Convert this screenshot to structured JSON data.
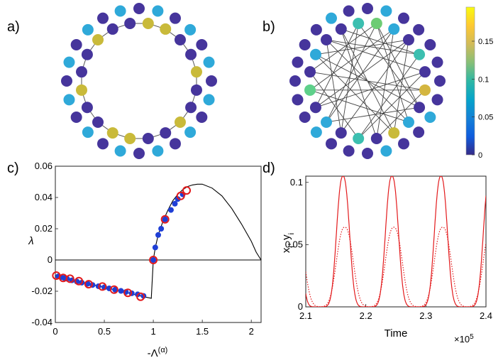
{
  "panels": {
    "a": {
      "label": "a)"
    },
    "b": {
      "label": "b)"
    },
    "c": {
      "label": "c)"
    },
    "d": {
      "label": "d)"
    }
  },
  "networks": {
    "a": {
      "outer_count": 24,
      "inner_count": 20,
      "outer_colors": [
        "#46359c",
        "#2fa9d9",
        "#46359c",
        "#2fa9d9",
        "#46359c",
        "#2fa9d9",
        "#46359c",
        "#2fa9d9",
        "#46359c",
        "#2fa9d9",
        "#46359c",
        "#2fa9d9",
        "#46359c",
        "#2fa9d9",
        "#46359c",
        "#2fa9d9",
        "#46359c",
        "#2fa9d9",
        "#46359c",
        "#2fa9d9",
        "#46359c",
        "#2fa9d9",
        "#46359c",
        "#2fa9d9"
      ],
      "inner_colors": [
        "#c9ba3a",
        "#c9ba3a",
        "#46359c",
        "#46359c",
        "#c9ba3a",
        "#46359c",
        "#46359c",
        "#c9ba3a",
        "#46359c",
        "#46359c",
        "#c9ba3a",
        "#c9ba3a",
        "#46359c",
        "#46359c",
        "#c9ba3a",
        "#46359c",
        "#46359c",
        "#c9ba3a",
        "#46359c",
        "#46359c"
      ],
      "ring_edge_color": "#555555"
    },
    "b": {
      "outer_colors": [
        "#46359c",
        "#2fa9d9",
        "#46359c",
        "#46359c",
        "#46359c",
        "#46359c",
        "#46359c",
        "#46359c",
        "#2fa9d9",
        "#46359c",
        "#46359c",
        "#2fa9d9",
        "#46359c",
        "#46359c",
        "#46359c",
        "#2fa9d9",
        "#46359c",
        "#46359c",
        "#46359c",
        "#46359c",
        "#46359c",
        "#46359c",
        "#2fa9d9",
        "#46359c"
      ],
      "inner_colors": [
        "#6dcc74",
        "#2fa9d9",
        "#46359c",
        "#3cbfb0",
        "#46359c",
        "#d4b640",
        "#46359c",
        "#2fa9d9",
        "#c9ba3a",
        "#46359c",
        "#3cbfb0",
        "#46359c",
        "#2fa9d9",
        "#46359c",
        "#5ed08a",
        "#46359c",
        "#2fa9d9",
        "#46359c",
        "#46359c",
        "#3cbfb0"
      ],
      "edges": [
        [
          0,
          7
        ],
        [
          0,
          12
        ],
        [
          1,
          9
        ],
        [
          1,
          14
        ],
        [
          2,
          11
        ],
        [
          2,
          16
        ],
        [
          3,
          10
        ],
        [
          3,
          18
        ],
        [
          4,
          13
        ],
        [
          4,
          17
        ],
        [
          5,
          9
        ],
        [
          5,
          15
        ],
        [
          6,
          12
        ],
        [
          6,
          19
        ],
        [
          7,
          14
        ],
        [
          8,
          16
        ],
        [
          8,
          2
        ],
        [
          9,
          18
        ],
        [
          10,
          4
        ],
        [
          11,
          17
        ],
        [
          12,
          1
        ],
        [
          13,
          19
        ],
        [
          14,
          5
        ],
        [
          15,
          0
        ],
        [
          16,
          6
        ],
        [
          17,
          3
        ],
        [
          18,
          8
        ],
        [
          19,
          11
        ],
        [
          2,
          13
        ],
        [
          7,
          17
        ],
        [
          10,
          15
        ],
        [
          6,
          0
        ]
      ],
      "edge_color": "#444444"
    }
  },
  "colorbar": {
    "ticks": [
      {
        "value": 0,
        "label": "0"
      },
      {
        "value": 0.05,
        "label": "0.05"
      },
      {
        "value": 0.1,
        "label": "0.1"
      },
      {
        "value": 0.15,
        "label": "0.15"
      }
    ],
    "min": 0,
    "max": 0.195,
    "stops": [
      "#352a87",
      "#0f5cdd",
      "#1481d6",
      "#06a4ca",
      "#2eb7a4",
      "#87bf77",
      "#d1bb59",
      "#fec832",
      "#f9fb0e"
    ]
  },
  "chart_data": [
    {
      "type": "line",
      "panel": "c",
      "xlabel": "-Λ(α)",
      "ylabel": "λ",
      "xlim": [
        0,
        2.1
      ],
      "ylim": [
        -0.04,
        0.06
      ],
      "xticks": [
        {
          "v": 0,
          "label": "0"
        },
        {
          "v": 0.5,
          "label": "0.5"
        },
        {
          "v": 1,
          "label": "1"
        },
        {
          "v": 1.5,
          "label": "1.5"
        },
        {
          "v": 2,
          "label": "2"
        }
      ],
      "yticks": [
        {
          "v": -0.04,
          "label": "-0.04"
        },
        {
          "v": -0.02,
          "label": "-0.02"
        },
        {
          "v": 0,
          "label": "0"
        },
        {
          "v": 0.02,
          "label": "0.02"
        },
        {
          "v": 0.04,
          "label": "0.04"
        },
        {
          "v": 0.06,
          "label": "0.06"
        }
      ],
      "grid": false,
      "series": [
        {
          "kind": "curve",
          "color": "#000000",
          "x": [
            0,
            0.1,
            0.2,
            0.3,
            0.4,
            0.5,
            0.6,
            0.7,
            0.8,
            0.9,
            0.98,
            0.98,
            1.0,
            1.02,
            1.05,
            1.1,
            1.15,
            1.2,
            1.25,
            1.3,
            1.35,
            1.4,
            1.45,
            1.5,
            1.6,
            1.7,
            1.8,
            1.9,
            2.0,
            2.05,
            2.1
          ],
          "y": [
            -0.01,
            -0.0115,
            -0.013,
            -0.0145,
            -0.016,
            -0.0175,
            -0.019,
            -0.0205,
            -0.022,
            -0.0235,
            -0.0245,
            -0.024,
            0,
            0.008,
            0.016,
            0.025,
            0.032,
            0.038,
            0.042,
            0.045,
            0.047,
            0.048,
            0.0485,
            0.0485,
            0.046,
            0.041,
            0.033,
            0.023,
            0.012,
            0.005,
            0
          ]
        },
        {
          "kind": "hline",
          "color": "#000000",
          "y": 0
        },
        {
          "kind": "dots",
          "color": "#1f3fd6",
          "x": [
            0.03,
            0.06,
            0.09,
            0.12,
            0.17,
            0.22,
            0.27,
            0.33,
            0.38,
            0.44,
            0.5,
            0.55,
            0.61,
            0.67,
            0.72,
            0.78,
            0.84,
            0.9,
            1.0,
            1.02,
            1.05,
            1.08,
            1.12,
            1.18,
            1.22,
            1.25,
            1.3
          ],
          "y": [
            -0.0105,
            -0.011,
            -0.0115,
            -0.012,
            -0.013,
            -0.0138,
            -0.0145,
            -0.0152,
            -0.016,
            -0.0168,
            -0.0175,
            -0.0182,
            -0.019,
            -0.0198,
            -0.0205,
            -0.0213,
            -0.022,
            -0.023,
            0,
            0.008,
            0.016,
            0.02,
            0.026,
            0.032,
            0.036,
            0.039,
            0.042
          ]
        },
        {
          "kind": "rings",
          "color": "#e31a1c",
          "x": [
            0.01,
            0.08,
            0.15,
            0.24,
            0.34,
            0.48,
            0.6,
            0.74,
            0.87,
            1.0,
            1.12,
            1.28,
            1.34
          ],
          "y": [
            -0.01,
            -0.0115,
            -0.012,
            -0.0135,
            -0.0155,
            -0.017,
            -0.019,
            -0.021,
            -0.0235,
            0,
            0.026,
            0.041,
            0.0445
          ]
        }
      ]
    },
    {
      "type": "line",
      "panel": "d",
      "xlabel": "Time",
      "ylabel": "xi, yi",
      "exponent_label": "×10",
      "exponent_power": "5",
      "xlim": [
        2.1,
        2.4
      ],
      "ylim": [
        0,
        0.105
      ],
      "xticks": [
        {
          "v": 2.1,
          "label": "2.1"
        },
        {
          "v": 2.2,
          "label": "2.2"
        },
        {
          "v": 2.3,
          "label": "2.3"
        },
        {
          "v": 2.4,
          "label": "2.4"
        }
      ],
      "yticks": [
        {
          "v": 0,
          "label": "0"
        },
        {
          "v": 0.05,
          "label": "0.05"
        },
        {
          "v": 0.1,
          "label": "0.1"
        }
      ],
      "grid": false,
      "period": 0.0815,
      "first_peak": 2.162,
      "series": [
        {
          "name": "",
          "style": "solid",
          "color": "#e31a1c",
          "amplitude": 0.105
        },
        {
          "name": "",
          "style": "dotted",
          "color": "#e31a1c",
          "amplitude": 0.064
        }
      ]
    }
  ]
}
